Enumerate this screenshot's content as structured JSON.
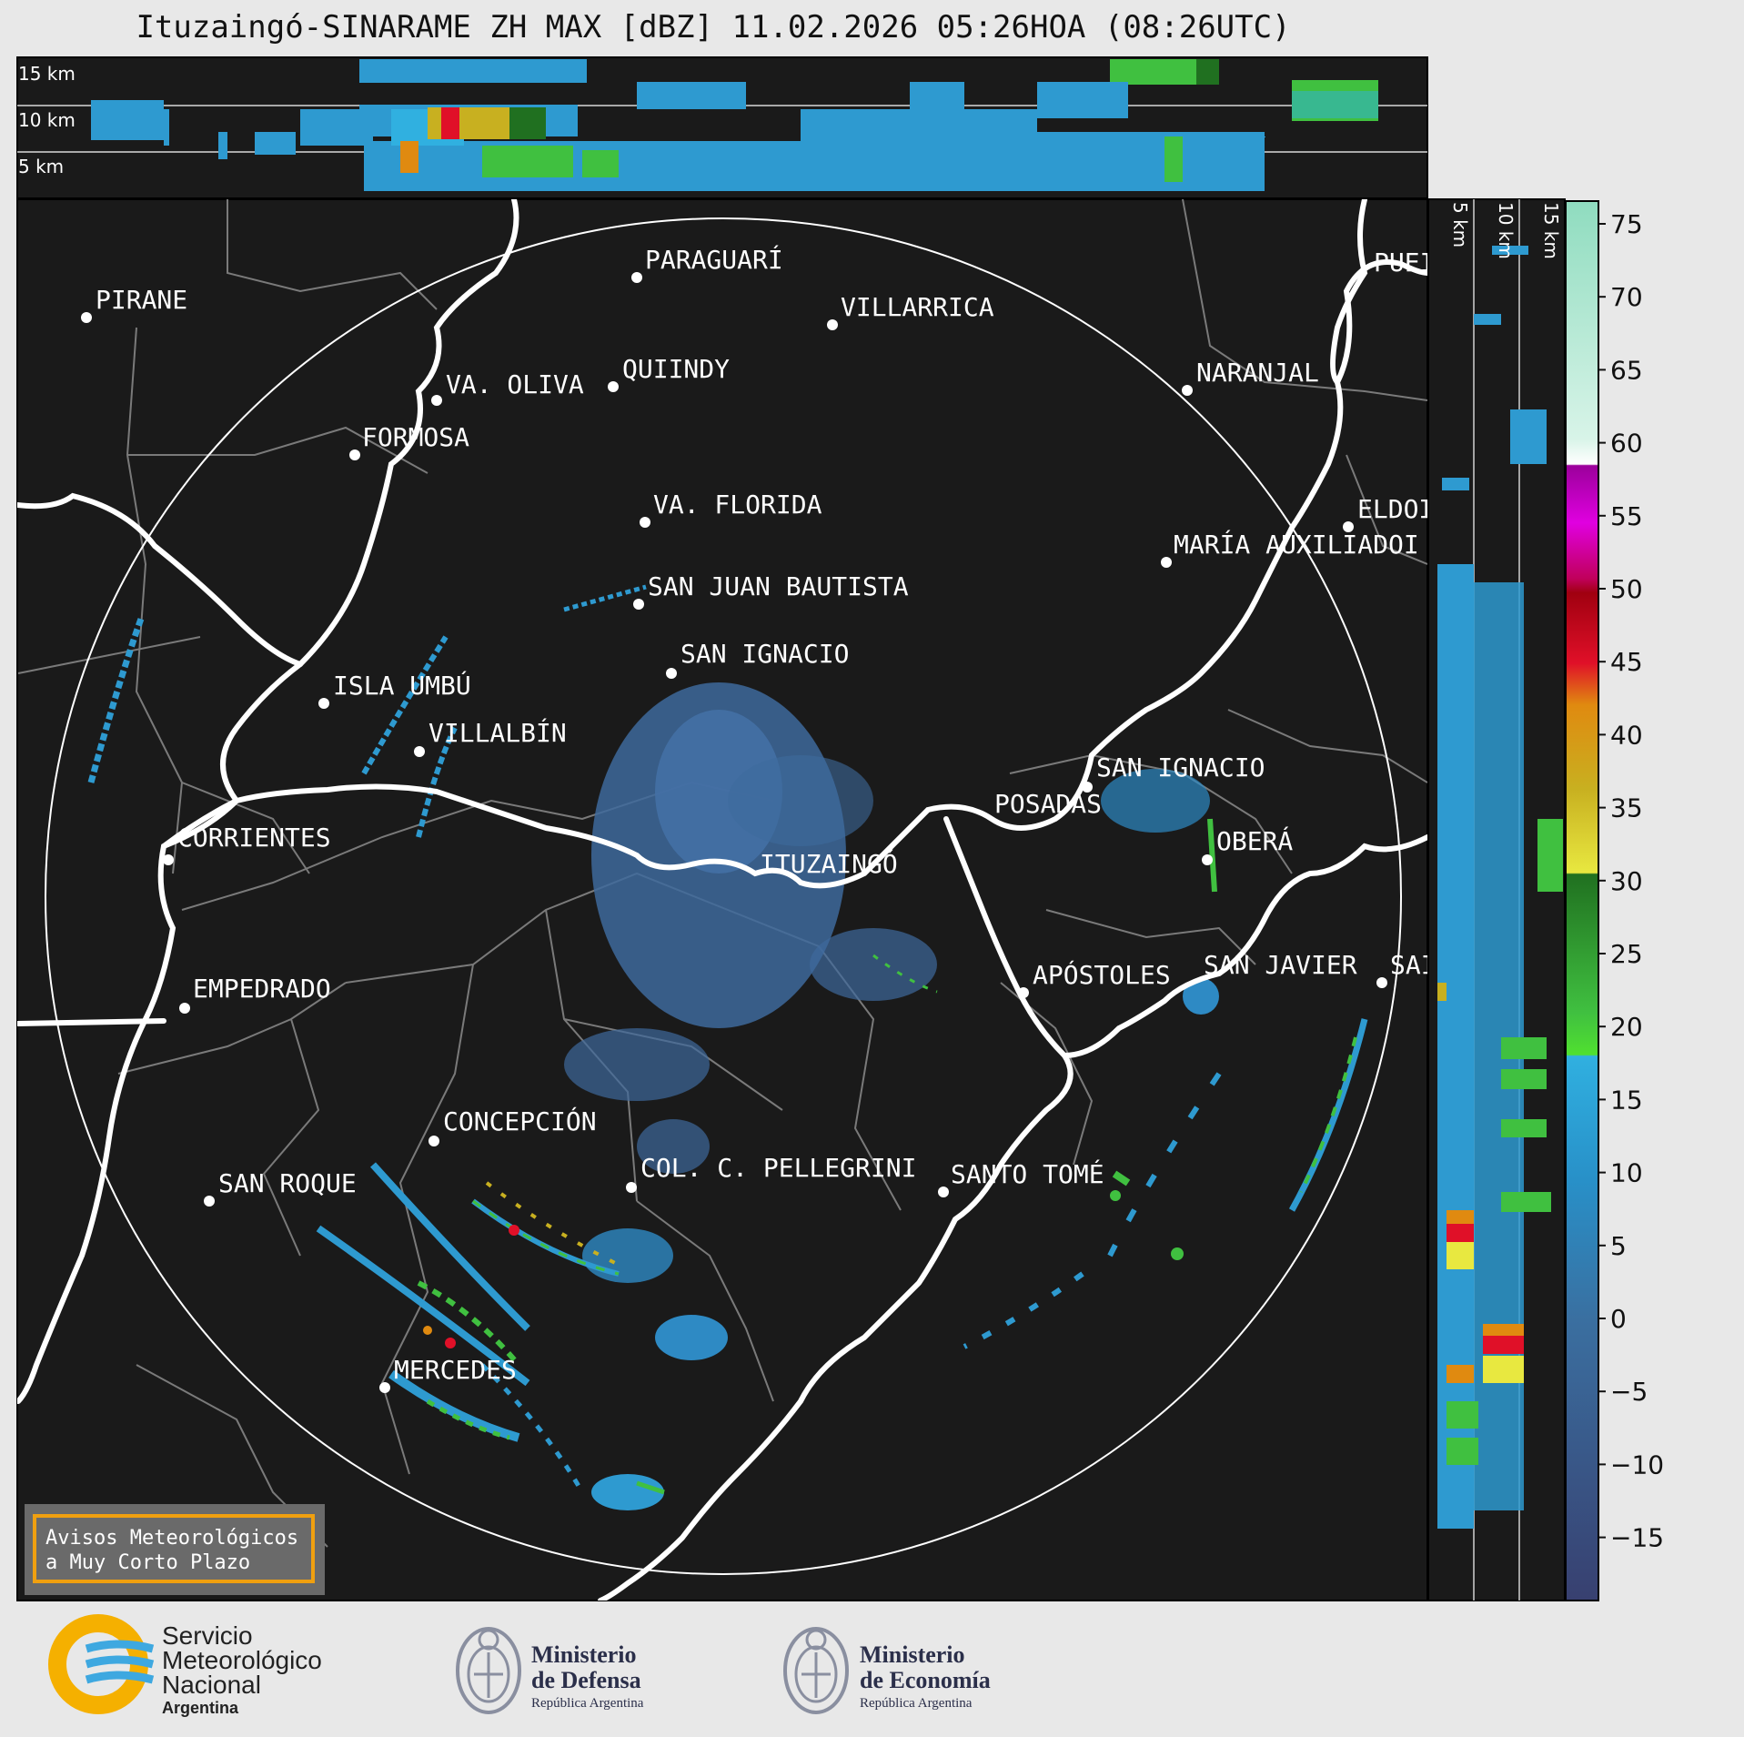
{
  "title": "Ituzaingó-SINARAME ZH MAX [dBZ] 11.02.2026 05:26HOA (08:26UTC)",
  "top_panel": {
    "height_labels": [
      "15 km",
      "10 km",
      "5 km"
    ]
  },
  "side_panel": {
    "height_labels": [
      "5 km",
      "10 km",
      "15 km"
    ]
  },
  "colorbar": {
    "ticks": [
      "75",
      "70",
      "65",
      "60",
      "55",
      "50",
      "45",
      "40",
      "35",
      "30",
      "25",
      "20",
      "15",
      "10",
      "5",
      "0",
      "−5",
      "−10",
      "−15"
    ],
    "colors": {
      "high": "#8fdcbf",
      "white": "#ffffff",
      "magenta": "#e000e0",
      "purple": "#9b009b",
      "crimson": "#c0005a",
      "red": "#e01028",
      "darkred": "#a00010",
      "orange": "#e08a10",
      "gold": "#c8b020",
      "yellow": "#e8e840",
      "green": "#40c040",
      "lightgreen": "#50e030",
      "darkgreen": "#207020",
      "cyan": "#30b0e0",
      "blue": "#2890c8",
      "steel": "#3a6fa0",
      "navy": "#384070"
    }
  },
  "map": {
    "radar_site": "ITUZAINGÓ",
    "cities": [
      {
        "name": "PIRANE"
      },
      {
        "name": "PARAGUARÍ"
      },
      {
        "name": "VILLARRICA"
      },
      {
        "name": "QUIINDY"
      },
      {
        "name": "VA. OLIVA"
      },
      {
        "name": "FORMOSA"
      },
      {
        "name": "NARANJAL"
      },
      {
        "name": "PUEI"
      },
      {
        "name": "VA. FLORIDA"
      },
      {
        "name": "ELDOI"
      },
      {
        "name": "MARÍA AUXILIADOI"
      },
      {
        "name": "SAN JUAN BAUTISTA"
      },
      {
        "name": "SAN IGNACIO"
      },
      {
        "name": "ISLA UMBÚ"
      },
      {
        "name": "VILLALBÍN"
      },
      {
        "name": "SAN IGNACIO"
      },
      {
        "name": "POSADAS"
      },
      {
        "name": "CORRIENTES"
      },
      {
        "name": "OBERÁ"
      },
      {
        "name": "APÓSTOLES"
      },
      {
        "name": "SAN JAVIER"
      },
      {
        "name": "SAI"
      },
      {
        "name": "EMPEDRADO"
      },
      {
        "name": "CONCEPCIÓN"
      },
      {
        "name": "SAN ROQUE"
      },
      {
        "name": "COL. C. PELLEGRINI"
      },
      {
        "name": "SANTO TOMÉ"
      },
      {
        "name": "MERCEDES"
      }
    ]
  },
  "alert_box": {
    "line1": "Avisos Meteorológicos",
    "line2": "a Muy Corto Plazo"
  },
  "footer": {
    "smn": {
      "line1": "Servicio",
      "line2": "Meteorológico",
      "line3": "Nacional",
      "line4": "Argentina"
    },
    "defensa": {
      "line1": "Ministerio",
      "line2": "de Defensa",
      "line3": "República Argentina"
    },
    "economia": {
      "line1": "Ministerio",
      "line2": "de Economía",
      "line3": "República Argentina"
    }
  }
}
